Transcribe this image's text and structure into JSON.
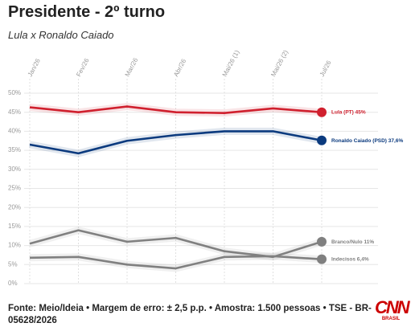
{
  "chart_data": {
    "type": "line",
    "title": "Presidente - 2º turno",
    "subtitle": "Lula x Ronaldo Caiado",
    "source": "Fonte: Meio/Ideia • Margem de erro: ± 2,5 p.p. • Amostra: 1.500 pessoas • TSE - BR-05628/2026",
    "logo": "CNN",
    "logo_sub": "BRASIL",
    "categories": [
      "Jan/26",
      "Fev/26",
      "Mar/26",
      "Abr/26",
      "Mai/26 (1)",
      "Mai/26 (2)",
      "Jul/26"
    ],
    "ylim": [
      0,
      50
    ],
    "yticks": [
      {
        "value": 0,
        "label": "0%"
      },
      {
        "value": 5,
        "label": "5%"
      },
      {
        "value": 10,
        "label": "10%"
      },
      {
        "value": 15,
        "label": "15%"
      },
      {
        "value": 20,
        "label": "20%"
      },
      {
        "value": 25,
        "label": "25%"
      },
      {
        "value": 30,
        "label": "30%"
      },
      {
        "value": 35,
        "label": "35%"
      },
      {
        "value": 40,
        "label": "40%"
      },
      {
        "value": 45,
        "label": "45%"
      },
      {
        "value": 50,
        "label": "50%"
      }
    ],
    "grid": true,
    "series": [
      {
        "name": "Lula (PT)",
        "color": "#d0202e",
        "values": [
          46.3,
          45,
          46.5,
          45,
          44.8,
          46,
          45
        ],
        "value_labels": [
          null,
          null,
          null,
          null,
          null,
          null,
          "45%"
        ]
      },
      {
        "name": "Ronaldo Caiado (PSD)",
        "color": "#0b3a7e",
        "values": [
          36.5,
          34.2,
          37.5,
          39,
          40,
          40,
          37.6
        ],
        "value_labels": [
          null,
          null,
          null,
          null,
          null,
          null,
          "37,6%"
        ]
      },
      {
        "name": "Branco/Nulo",
        "color": "#808080",
        "values": [
          10.5,
          14,
          11,
          12,
          8.5,
          7,
          11
        ],
        "value_labels": [
          null,
          null,
          null,
          null,
          null,
          null,
          "11%"
        ]
      },
      {
        "name": "Indecisos",
        "color": "#808080",
        "values": [
          6.8,
          7,
          5,
          4,
          7,
          7.2,
          6.4
        ],
        "value_labels": [
          null,
          null,
          null,
          null,
          null,
          null,
          "6,4%"
        ]
      }
    ]
  }
}
